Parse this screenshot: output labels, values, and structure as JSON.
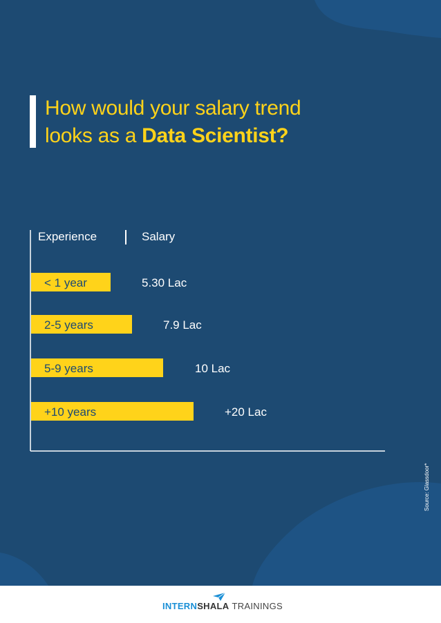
{
  "title": {
    "line1": "How would your salary trend",
    "line2_prefix": "looks as a ",
    "line2_bold": "Data Scientist?"
  },
  "chart_data": {
    "type": "bar",
    "orientation": "horizontal",
    "header_left": "Experience",
    "header_right": "Salary",
    "categories": [
      "< 1 year",
      "2-5 years",
      "5-9 years",
      "+10 years"
    ],
    "value_labels": [
      "5.30 Lac",
      "7.9 Lac",
      "10 Lac",
      "+20 Lac"
    ],
    "bar_color": "#ffd31a"
  },
  "source": "Source: Glassdoor*",
  "brand": {
    "part1": "INTERN",
    "part2": "SHALA",
    "part3": "TRAININGS",
    "icon": "paper-plane-icon"
  },
  "colors": {
    "background": "#1d4a72",
    "accent": "#ffd31a",
    "brand_blue": "#1a8fd6"
  }
}
